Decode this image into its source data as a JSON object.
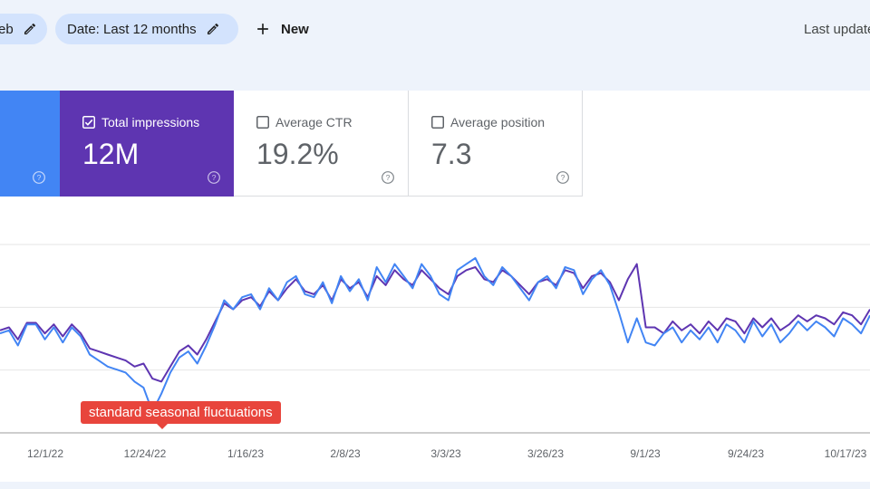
{
  "toolbar": {
    "search_type_chip": "eb",
    "date_chip": "Date: Last 12 months",
    "new_label": "New",
    "last_updated": "Last updated"
  },
  "metrics": {
    "impressions": {
      "label": "Total impressions",
      "value": "12M",
      "checked": true,
      "color": "#5e35b1"
    },
    "ctr": {
      "label": "Average CTR",
      "value": "19.2%",
      "checked": false
    },
    "position": {
      "label": "Average position",
      "value": "7.3",
      "checked": false
    },
    "clicks": {
      "checked": true,
      "color": "#4285f4"
    }
  },
  "annotation": "standard seasonal fluctuations",
  "chart_data": {
    "type": "line",
    "x_ticks": [
      "12/1/22",
      "12/24/22",
      "1/16/23",
      "2/8/23",
      "3/3/23",
      "3/26/23",
      "9/1/23",
      "9/24/23",
      "10/17/23"
    ],
    "series": [
      {
        "color": "#5e35b1",
        "values": [
          68,
          70,
          62,
          73,
          73,
          66,
          72,
          64,
          72,
          66,
          56,
          54,
          52,
          50,
          48,
          44,
          46,
          36,
          34,
          44,
          54,
          58,
          52,
          62,
          74,
          86,
          82,
          88,
          90,
          84,
          94,
          88,
          96,
          102,
          94,
          92,
          98,
          88,
          102,
          96,
          100,
          90,
          104,
          98,
          108,
          102,
          98,
          108,
          102,
          96,
          92,
          104,
          108,
          110,
          102,
          100,
          108,
          104,
          98,
          92,
          100,
          102,
          98,
          108,
          106,
          96,
          104,
          106,
          100,
          88,
          102,
          112,
          70,
          70,
          66,
          74,
          68,
          72,
          66,
          74,
          68,
          76,
          74,
          66,
          76,
          70,
          76,
          68,
          72,
          78,
          74,
          78,
          76,
          72,
          80,
          78,
          72,
          82
        ]
      },
      {
        "color": "#4285f4",
        "values": [
          66,
          68,
          58,
          72,
          72,
          62,
          70,
          60,
          70,
          64,
          52,
          48,
          44,
          42,
          40,
          34,
          30,
          14,
          26,
          40,
          50,
          54,
          46,
          58,
          72,
          88,
          82,
          90,
          92,
          82,
          96,
          88,
          100,
          104,
          92,
          90,
          100,
          86,
          104,
          94,
          102,
          88,
          110,
          100,
          112,
          104,
          96,
          112,
          104,
          92,
          88,
          108,
          112,
          116,
          104,
          98,
          110,
          104,
          96,
          88,
          100,
          104,
          96,
          110,
          108,
          92,
          102,
          108,
          98,
          80,
          60,
          76,
          60,
          58,
          66,
          70,
          60,
          68,
          62,
          70,
          60,
          72,
          68,
          60,
          74,
          64,
          72,
          60,
          66,
          74,
          68,
          74,
          70,
          64,
          76,
          72,
          66,
          78
        ]
      }
    ],
    "ylim": [
      0,
      125
    ],
    "grid": true
  }
}
